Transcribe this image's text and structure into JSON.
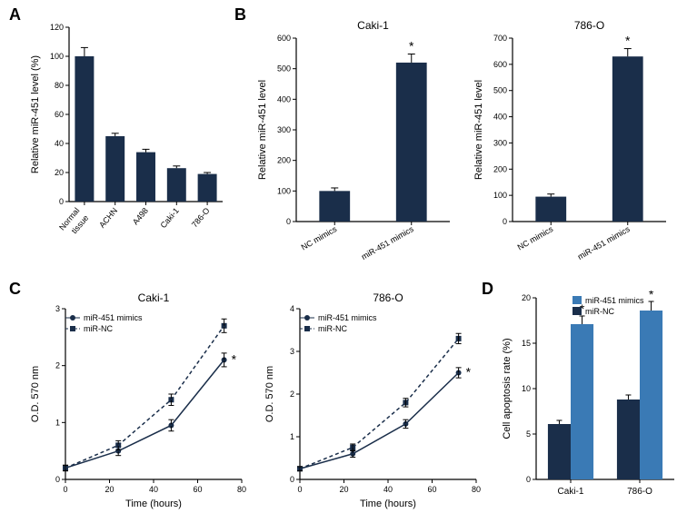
{
  "colors": {
    "bar_dark": "#1a2e4a",
    "bar_light": "#3a7ab5",
    "line_color": "#1a2e4a",
    "axis": "#000000",
    "text": "#000000"
  },
  "panelA": {
    "label": "A",
    "ylabel": "Relative miR-451 level (%)",
    "ylim": [
      0,
      120
    ],
    "ytick_step": 20,
    "categories": [
      "Normal\ntissue",
      "ACHN",
      "A498",
      "Caki-1",
      "786-O"
    ],
    "values": [
      100,
      45,
      34,
      23,
      19
    ],
    "errors": [
      6,
      2,
      2,
      1.5,
      1
    ],
    "bar_color": "#1a2e4a",
    "bar_width": 0.62
  },
  "panelB": {
    "label": "B",
    "charts": [
      {
        "title": "Caki-1",
        "ylabel": "Relative miR-451 level",
        "ylim": [
          0,
          600
        ],
        "ytick_step": 100,
        "categories": [
          "NC mimics",
          "miR-451 mimics"
        ],
        "values": [
          100,
          520
        ],
        "errors": [
          10,
          28
        ],
        "sig": [
          false,
          true
        ],
        "bar_color": "#1a2e4a",
        "bar_width": 0.4
      },
      {
        "title": "786-O",
        "ylabel": "Relative miR-451 level",
        "ylim": [
          0,
          700
        ],
        "ytick_step": 100,
        "categories": [
          "NC mimics",
          "miR-451 mimics"
        ],
        "values": [
          95,
          630
        ],
        "errors": [
          10,
          30
        ],
        "sig": [
          false,
          true
        ],
        "bar_color": "#1a2e4a",
        "bar_width": 0.4
      }
    ]
  },
  "panelC": {
    "label": "C",
    "ylabel": "O.D. 570 nm",
    "xlabel": "Time (hours)",
    "xlim": [
      0,
      80
    ],
    "xtick_step": 20,
    "legend_items": [
      "miR-451 mimics",
      "miR-NC"
    ],
    "charts": [
      {
        "title": "Caki-1",
        "ylim": [
          0,
          3
        ],
        "ytick_step": 1,
        "times": [
          0,
          24,
          48,
          72
        ],
        "series": [
          {
            "name": "miR-451 mimics",
            "vals": [
              0.2,
              0.5,
              0.95,
              2.1
            ],
            "errs": [
              0.05,
              0.08,
              0.1,
              0.12
            ],
            "dash": false
          },
          {
            "name": "miR-NC",
            "vals": [
              0.2,
              0.6,
              1.4,
              2.7
            ],
            "errs": [
              0.05,
              0.08,
              0.1,
              0.12
            ],
            "dash": true
          }
        ],
        "sig_last": true
      },
      {
        "title": "786-O",
        "ylim": [
          0,
          4
        ],
        "ytick_step": 1,
        "times": [
          0,
          24,
          48,
          72
        ],
        "series": [
          {
            "name": "miR-451 mimics",
            "vals": [
              0.25,
              0.6,
              1.3,
              2.5
            ],
            "errs": [
              0.05,
              0.08,
              0.1,
              0.12
            ],
            "dash": false
          },
          {
            "name": "miR-NC",
            "vals": [
              0.25,
              0.75,
              1.8,
              3.3
            ],
            "errs": [
              0.05,
              0.08,
              0.1,
              0.12
            ],
            "dash": true
          }
        ],
        "sig_last": true
      }
    ]
  },
  "panelD": {
    "label": "D",
    "ylabel": "Cell apoptosis rate (%)",
    "ylim": [
      0,
      20
    ],
    "ytick_step": 5,
    "groups": [
      "Caki-1",
      "786-O"
    ],
    "legend": [
      {
        "label": "miR-451 mimics",
        "color": "#3a7ab5"
      },
      {
        "label": "miR-NC",
        "color": "#1a2e4a"
      }
    ],
    "series": [
      {
        "name": "miR-NC",
        "vals": [
          6.1,
          8.8
        ],
        "errs": [
          0.4,
          0.5
        ],
        "color": "#1a2e4a"
      },
      {
        "name": "miR-451 mimics",
        "vals": [
          17.1,
          18.6
        ],
        "errs": [
          0.9,
          1.0
        ],
        "color": "#3a7ab5",
        "sig": true
      }
    ],
    "bar_width": 0.33
  }
}
